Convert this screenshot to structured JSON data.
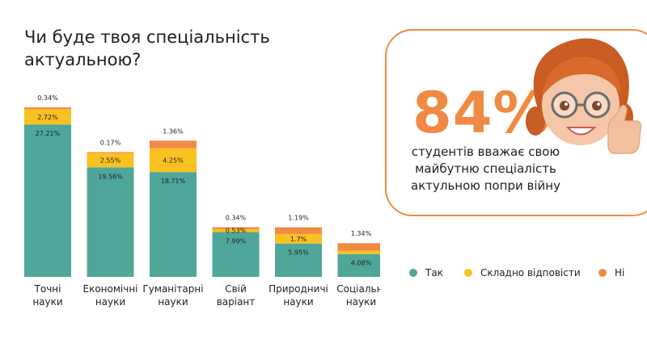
{
  "title": "Чи буде твоя спеціальність актуальною?",
  "highlight": {
    "value": "84%",
    "lines": [
      "студентів вважає свою",
      "майбутню спеціалість",
      "актульною попри війну"
    ]
  },
  "colors": {
    "yes": "#4fa79a",
    "hard": "#f9c121",
    "no": "#f08a43",
    "border": "#f08a43"
  },
  "chart_data": {
    "type": "bar",
    "stacked": true,
    "categories": [
      [
        "Точні",
        "науки"
      ],
      [
        "Економічні",
        "науки"
      ],
      [
        "Гуманітарні",
        "науки"
      ],
      [
        "Свій",
        "варіант"
      ],
      [
        "Природничі",
        "науки"
      ],
      [
        "Соціальні",
        "науки"
      ]
    ],
    "series": [
      {
        "name": "Так",
        "color": "#4fa79a",
        "values": [
          27.21,
          19.56,
          18.71,
          7.99,
          5.95,
          4.08
        ],
        "labels": [
          "27.21%",
          "19.56%",
          "18.71%",
          "7.99%",
          "5.95%",
          "4.08%"
        ]
      },
      {
        "name": "Складно відповісти",
        "color": "#f9c121",
        "values": [
          2.72,
          2.55,
          4.25,
          0.53,
          1.7,
          0.6
        ],
        "labels": [
          "2.72%",
          "2.55%",
          "4.25%",
          "0.53%",
          "1.7%",
          ""
        ]
      },
      {
        "name": "Ні",
        "color": "#f08a43",
        "values": [
          0.34,
          0.17,
          1.36,
          0.34,
          1.19,
          1.34
        ],
        "labels": [
          "0.34%",
          "0.17%",
          "1.36%",
          "0.34%",
          "1.19%",
          "1.34%"
        ]
      }
    ],
    "ylim": [
      0,
      30.27
    ]
  }
}
